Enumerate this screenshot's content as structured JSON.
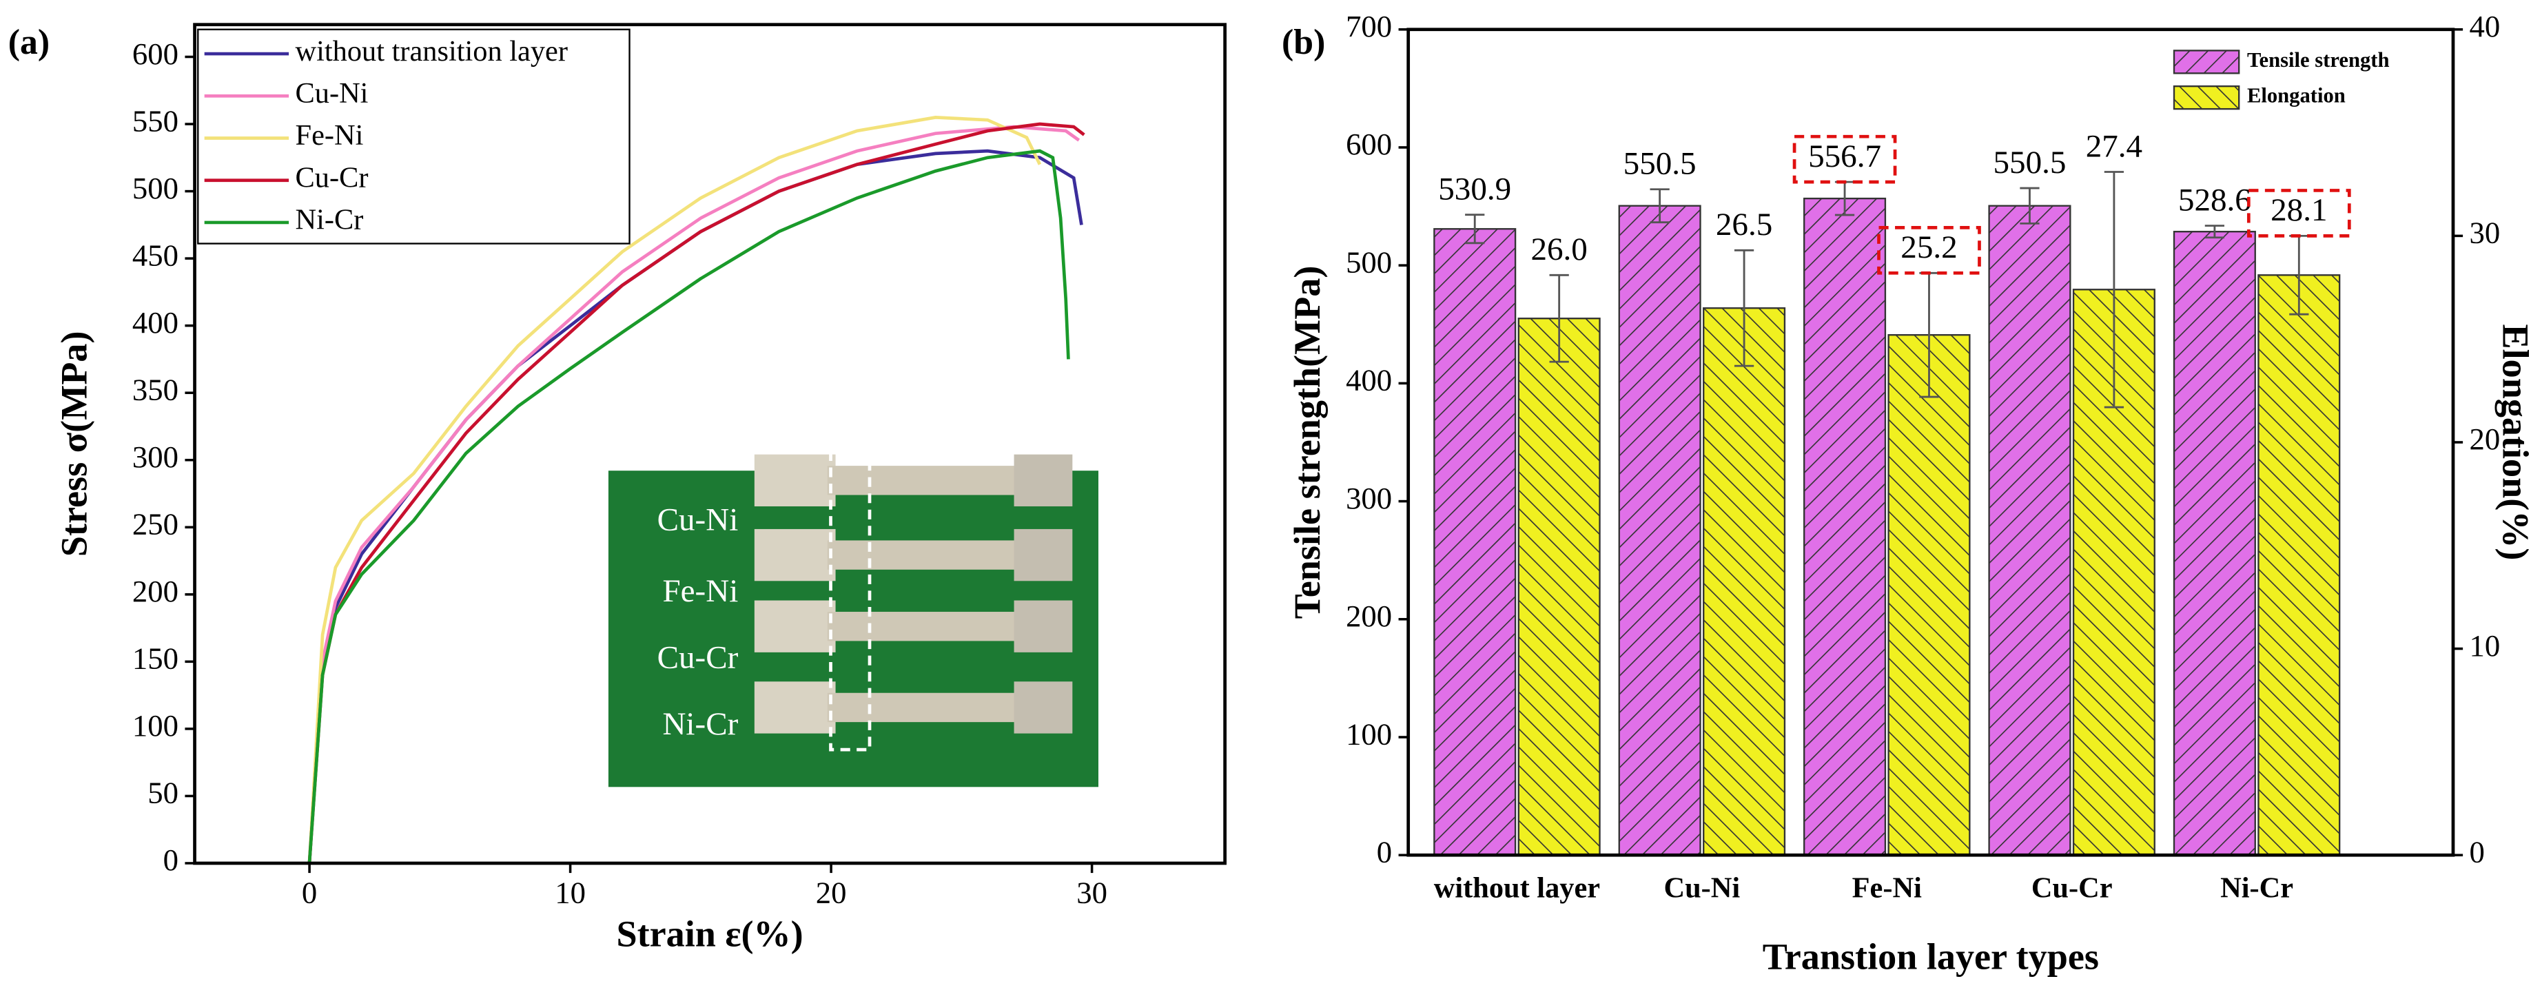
{
  "chart_data": [
    {
      "type": "line",
      "panel_label": "(a)",
      "x_label": "Strain ε(%)",
      "y_label": "Stress σ(MPa)",
      "xlim": [
        -4.4,
        35.1
      ],
      "xticks": [
        0,
        10,
        20,
        30
      ],
      "ylim": [
        0,
        624
      ],
      "yticks": [
        0,
        50,
        100,
        150,
        200,
        250,
        300,
        350,
        400,
        450,
        500,
        550,
        600
      ],
      "legend": "upper left",
      "series": [
        {
          "name": "without transition layer",
          "color": "#3b2d9b",
          "x": [
            0,
            0.5,
            1,
            2,
            4,
            6,
            8,
            10,
            12,
            15,
            18,
            21,
            24,
            26,
            28,
            29.3,
            29.6
          ],
          "values": [
            0,
            150,
            190,
            230,
            280,
            330,
            370,
            400,
            430,
            470,
            500,
            520,
            528,
            530,
            525,
            510,
            475
          ]
        },
        {
          "name": "Cu-Ni",
          "color": "#f57fc0",
          "x": [
            0,
            0.5,
            1,
            2,
            4,
            6,
            8,
            10,
            12,
            15,
            18,
            21,
            24,
            27,
            29,
            29.5
          ],
          "values": [
            0,
            150,
            195,
            235,
            280,
            330,
            370,
            405,
            440,
            480,
            510,
            530,
            543,
            548,
            545,
            538
          ]
        },
        {
          "name": "Fe-Ni",
          "color": "#f3e27a",
          "x": [
            0,
            0.5,
            1,
            2,
            4,
            6,
            8,
            10,
            12,
            15,
            18,
            21,
            24,
            26,
            27.5,
            28
          ],
          "values": [
            0,
            170,
            220,
            255,
            290,
            340,
            385,
            420,
            455,
            495,
            525,
            545,
            555,
            553,
            540,
            520
          ]
        },
        {
          "name": "Cu-Cr",
          "color": "#c8102e",
          "x": [
            0,
            0.5,
            1,
            2,
            4,
            6,
            8,
            10,
            12,
            15,
            18,
            21,
            24,
            26,
            28,
            29.3,
            29.7
          ],
          "values": [
            0,
            140,
            185,
            220,
            270,
            320,
            360,
            395,
            430,
            470,
            500,
            520,
            535,
            545,
            550,
            548,
            542
          ]
        },
        {
          "name": "Ni-Cr",
          "color": "#1a9a2a",
          "x": [
            0,
            0.5,
            1,
            2,
            4,
            6,
            8,
            10,
            12,
            15,
            18,
            21,
            24,
            26,
            28,
            28.5,
            28.8,
            29,
            29.1
          ],
          "values": [
            0,
            140,
            185,
            215,
            255,
            305,
            340,
            368,
            395,
            435,
            470,
            495,
            515,
            525,
            530,
            525,
            480,
            420,
            375
          ]
        }
      ],
      "inset": {
        "labels": [
          "Cu-Ni",
          "Fe-Ni",
          "Cu-Cr",
          "Ni-Cr"
        ]
      }
    },
    {
      "type": "bar",
      "panel_label": "(b)",
      "x_label": "Transtion layer types",
      "y_label": "Tensile strength(MPa)",
      "y2_label": "Elongation(%)",
      "categories": [
        "without layer",
        "Cu-Ni",
        "Fe-Ni",
        "Cu-Cr",
        "Ni-Cr"
      ],
      "ylim": [
        0,
        700
      ],
      "yticks": [
        0,
        100,
        200,
        300,
        400,
        500,
        600,
        700
      ],
      "y2lim": [
        0,
        40
      ],
      "y2ticks": [
        0,
        10,
        20,
        30,
        40
      ],
      "legend": "upper right",
      "series": [
        {
          "name": "Tensile strength",
          "color": "#e070e8",
          "values": [
            530.9,
            550.5,
            556.7,
            550.5,
            528.6
          ],
          "errors": [
            12,
            14,
            14,
            15,
            5
          ]
        },
        {
          "name": "Elongation",
          "color": "#f0f020",
          "axis": "y2",
          "values": [
            26.0,
            26.5,
            25.2,
            27.4,
            28.1
          ],
          "value_labels": [
            "26.0",
            "26.5",
            "25.2",
            "27.4",
            "28.1"
          ],
          "errors": [
            2.1,
            2.8,
            3,
            5.7,
            1.9
          ]
        }
      ]
    }
  ]
}
